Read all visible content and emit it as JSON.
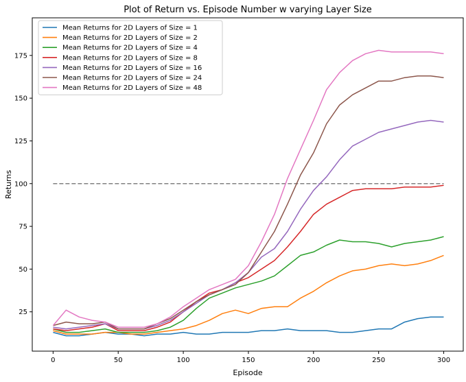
{
  "chart_data": {
    "type": "line",
    "title": "Plot of Return vs. Episode Number w varying Layer Size",
    "xlabel": "Episode",
    "ylabel": "Returns",
    "xlim": [
      -16,
      315
    ],
    "ylim": [
      2,
      197
    ],
    "xticks": [
      0,
      50,
      100,
      150,
      200,
      250,
      300
    ],
    "yticks": [
      25,
      50,
      75,
      100,
      125,
      150,
      175
    ],
    "grid": false,
    "legend_position": "top-left",
    "reference_line": {
      "y": 100,
      "x_start": 0,
      "x_end": 300,
      "style": "dashed",
      "color": "#808080"
    },
    "x": [
      0,
      10,
      20,
      30,
      40,
      50,
      60,
      70,
      80,
      90,
      100,
      110,
      120,
      130,
      140,
      150,
      160,
      170,
      180,
      190,
      200,
      210,
      220,
      230,
      240,
      250,
      260,
      270,
      280,
      290,
      300
    ],
    "series": [
      {
        "name": "Mean Returns for 2D Layers of Size = 1",
        "color": "#1f77b4",
        "values": [
          13,
          11,
          11,
          12,
          13,
          12,
          12,
          11,
          12,
          12,
          13,
          12,
          12,
          13,
          13,
          13,
          14,
          14,
          15,
          14,
          14,
          14,
          13,
          13,
          14,
          15,
          15,
          19,
          21,
          22,
          22
        ]
      },
      {
        "name": "Mean Returns for 2D Layers of Size = 2",
        "color": "#ff7f0e",
        "values": [
          14,
          12,
          12,
          12,
          13,
          13,
          12,
          12,
          13,
          14,
          15,
          17,
          20,
          24,
          26,
          24,
          27,
          28,
          28,
          33,
          37,
          42,
          46,
          49,
          50,
          52,
          53,
          52,
          53,
          55,
          58
        ]
      },
      {
        "name": "Mean Returns for 2D Layers of Size = 4",
        "color": "#2ca02c",
        "values": [
          15,
          13,
          13,
          14,
          15,
          13,
          13,
          13,
          14,
          16,
          20,
          27,
          33,
          36,
          39,
          41,
          43,
          46,
          52,
          58,
          60,
          64,
          67,
          66,
          66,
          65,
          63,
          65,
          66,
          67,
          69
        ]
      },
      {
        "name": "Mean Returns for 2D Layers of Size = 8",
        "color": "#d62728",
        "values": [
          15,
          14,
          15,
          16,
          18,
          14,
          14,
          14,
          16,
          19,
          25,
          31,
          36,
          38,
          42,
          45,
          50,
          55,
          63,
          72,
          82,
          88,
          92,
          96,
          97,
          97,
          97,
          98,
          98,
          98,
          99
        ]
      },
      {
        "name": "Mean Returns for 2D Layers of Size = 16",
        "color": "#9467bd",
        "values": [
          16,
          15,
          16,
          17,
          18,
          15,
          15,
          15,
          17,
          20,
          25,
          30,
          35,
          38,
          42,
          48,
          57,
          62,
          72,
          85,
          96,
          104,
          114,
          122,
          126,
          130,
          132,
          134,
          136,
          137,
          136
        ]
      },
      {
        "name": "Mean Returns for 2D Layers of Size = 24",
        "color": "#8c564b",
        "values": [
          17,
          19,
          18,
          18,
          19,
          15,
          15,
          15,
          18,
          21,
          26,
          31,
          35,
          38,
          41,
          48,
          60,
          72,
          88,
          105,
          118,
          135,
          146,
          152,
          156,
          160,
          160,
          162,
          163,
          163,
          162
        ]
      },
      {
        "name": "Mean Returns for 2D Layers of Size = 48",
        "color": "#e377c2",
        "values": [
          17,
          26,
          22,
          20,
          19,
          16,
          16,
          16,
          18,
          22,
          28,
          33,
          38,
          41,
          44,
          52,
          66,
          82,
          103,
          120,
          137,
          155,
          165,
          172,
          176,
          178,
          177,
          177,
          177,
          177,
          176
        ]
      }
    ]
  }
}
